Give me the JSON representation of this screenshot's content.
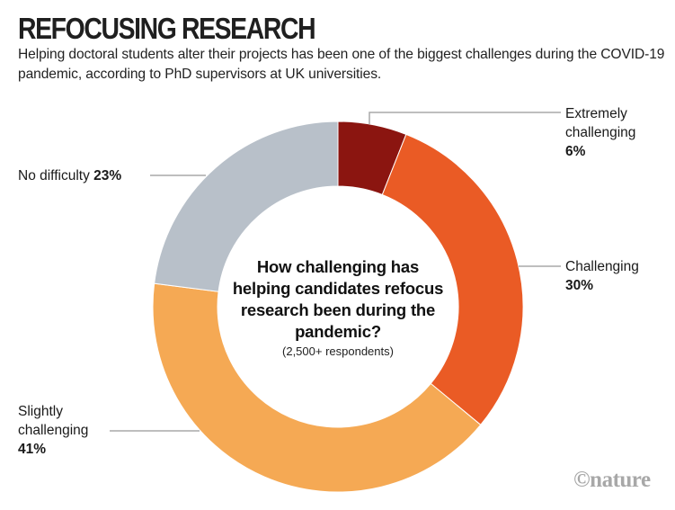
{
  "header": {
    "title": "REFOCUSING RESEARCH",
    "subtitle": "Helping doctoral students alter their projects has been one of the biggest challenges during the COVID-19 pandemic, according to PhD supervisors at UK universities."
  },
  "chart_data": {
    "type": "pie",
    "variant": "donut",
    "title": "How challenging has helping candidates refocus research been during the pandemic?",
    "note": "(2,500+ respondents)",
    "slices": [
      {
        "label": "Extremely challenging",
        "value": 6,
        "value_label": "6%",
        "color": "#8B1510"
      },
      {
        "label": "Challenging",
        "value": 30,
        "value_label": "30%",
        "color": "#EA5B25"
      },
      {
        "label": "Slightly challenging",
        "value": 41,
        "value_label": "41%",
        "color": "#F5A954"
      },
      {
        "label": "No difficulty",
        "value": 23,
        "value_label": "23%",
        "color": "#B8C0C9"
      }
    ],
    "start": "top",
    "direction": "clockwise"
  },
  "labels": {
    "extremely_line1": "Extremely",
    "extremely_line2": "challenging",
    "extremely_value": "6%",
    "challenging_line1": "Challenging",
    "challenging_value": "30%",
    "slightly_line1": "Slightly",
    "slightly_line2": "challenging",
    "slightly_value": "41%",
    "nodiff_text": "No difficulty ",
    "nodiff_value": "23%"
  },
  "footer": {
    "logo": "©nature"
  },
  "colors": {
    "leader": "#a9a9a9"
  }
}
